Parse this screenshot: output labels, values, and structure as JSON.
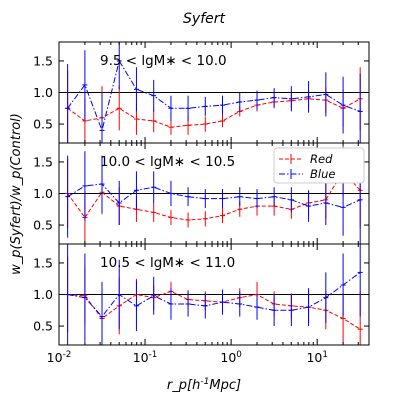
{
  "figure": {
    "title": "Syfert",
    "xlabel": "r_p[h^{-1}Mpc]",
    "ylabel": "w_p(Syfert)/w_p(Control)"
  },
  "chart_data": [
    {
      "type": "line",
      "panel_label": "9.5 < lgM* < 10.0",
      "xscale": "log",
      "xlim": [
        0.01,
        40
      ],
      "ylim": [
        0.2,
        1.8
      ],
      "yticks": [
        0.5,
        1.0,
        1.5
      ],
      "xtick_labels": [],
      "reference_line": 1.0,
      "legend": null,
      "series": [
        {
          "name": "Red",
          "color": "#ff0000",
          "style": "dashed",
          "x": [
            0.0126,
            0.02,
            0.0316,
            0.0501,
            0.0794,
            0.126,
            0.2,
            0.316,
            0.501,
            0.794,
            1.26,
            2.0,
            3.16,
            5.01,
            7.94,
            12.6,
            20.0,
            31.6
          ],
          "y": [
            0.75,
            0.55,
            0.6,
            0.75,
            0.58,
            0.55,
            0.45,
            0.48,
            0.5,
            0.55,
            0.7,
            0.8,
            0.85,
            0.87,
            0.9,
            0.88,
            0.75,
            0.9
          ],
          "err": [
            0.6,
            0.35,
            0.5,
            0.35,
            0.25,
            0.18,
            0.12,
            0.15,
            0.12,
            0.1,
            0.08,
            0.1,
            0.1,
            0.12,
            0.15,
            0.2,
            0.3,
            0.5
          ]
        },
        {
          "name": "Blue",
          "color": "#0000ff",
          "style": "dashdot",
          "x": [
            0.0126,
            0.02,
            0.0316,
            0.0501,
            0.0794,
            0.126,
            0.2,
            0.316,
            0.501,
            0.794,
            1.26,
            2.0,
            3.16,
            5.01,
            7.94,
            12.6,
            20.0,
            31.6
          ],
          "y": [
            0.75,
            1.12,
            0.4,
            1.5,
            1.05,
            0.95,
            0.75,
            0.75,
            0.78,
            0.8,
            0.85,
            0.88,
            0.92,
            0.9,
            0.93,
            0.97,
            0.8,
            0.7
          ],
          "err": [
            0.7,
            0.55,
            0.6,
            0.45,
            0.35,
            0.25,
            0.2,
            0.2,
            0.15,
            0.15,
            0.15,
            0.15,
            0.15,
            0.2,
            0.25,
            0.35,
            0.45,
            0.6
          ]
        }
      ]
    },
    {
      "type": "line",
      "panel_label": "10.0 < lgM* < 10.5",
      "xscale": "log",
      "xlim": [
        0.01,
        40
      ],
      "ylim": [
        0.2,
        1.8
      ],
      "yticks": [
        0.5,
        1.0,
        1.5
      ],
      "xtick_labels": [],
      "reference_line": 1.0,
      "legend": {
        "position": "upper-right",
        "entries": [
          "Red",
          "Blue"
        ]
      },
      "series": [
        {
          "name": "Red",
          "color": "#ff0000",
          "style": "dashed",
          "x": [
            0.0126,
            0.02,
            0.0316,
            0.0501,
            0.0794,
            0.126,
            0.2,
            0.316,
            0.501,
            0.794,
            1.26,
            2.0,
            3.16,
            5.01,
            7.94,
            12.6,
            20.0,
            31.6
          ],
          "y": [
            1.0,
            0.62,
            1.02,
            0.8,
            0.75,
            0.7,
            0.62,
            0.58,
            0.6,
            0.65,
            0.75,
            0.8,
            0.8,
            0.75,
            0.85,
            0.9,
            1.35,
            1.05
          ],
          "err": [
            0.55,
            0.4,
            0.35,
            0.3,
            0.2,
            0.15,
            0.12,
            0.12,
            0.12,
            0.12,
            0.12,
            0.15,
            0.15,
            0.15,
            0.2,
            0.3,
            0.4,
            0.6
          ]
        },
        {
          "name": "Blue",
          "color": "#0000ff",
          "style": "dashdot",
          "x": [
            0.0126,
            0.02,
            0.0316,
            0.0501,
            0.0794,
            0.126,
            0.2,
            0.316,
            0.501,
            0.794,
            1.26,
            2.0,
            3.16,
            5.01,
            7.94,
            12.6,
            20.0,
            31.6
          ],
          "y": [
            0.95,
            1.12,
            1.15,
            0.85,
            1.05,
            1.1,
            1.0,
            0.95,
            0.92,
            0.92,
            0.95,
            0.92,
            0.95,
            0.9,
            0.8,
            0.85,
            0.78,
            0.9
          ],
          "err": [
            0.65,
            0.55,
            0.45,
            0.35,
            0.3,
            0.25,
            0.2,
            0.15,
            0.15,
            0.15,
            0.15,
            0.15,
            0.15,
            0.2,
            0.25,
            0.35,
            0.45,
            0.7
          ]
        }
      ]
    },
    {
      "type": "line",
      "panel_label": "10.5 < lgM* < 11.0",
      "xscale": "log",
      "xlim": [
        0.01,
        40
      ],
      "ylim": [
        0.2,
        1.8
      ],
      "yticks": [
        0.5,
        1.0,
        1.5
      ],
      "xticks": [
        0.01,
        0.1,
        1,
        10
      ],
      "xtick_labels": [
        "10^{-2}",
        "10^{-1}",
        "10^{0}",
        "10^{1}"
      ],
      "reference_line": 1.0,
      "legend": null,
      "series": [
        {
          "name": "Red",
          "color": "#ff0000",
          "style": "dashed",
          "x": [
            0.0126,
            0.02,
            0.0316,
            0.0501,
            0.0794,
            0.126,
            0.2,
            0.316,
            0.501,
            0.794,
            1.26,
            2.0,
            3.16,
            5.01,
            7.94,
            12.6,
            20.0,
            31.6
          ],
          "y": [
            1.0,
            0.98,
            0.62,
            0.82,
            1.0,
            0.95,
            1.05,
            0.92,
            0.9,
            0.88,
            0.95,
            1.0,
            0.85,
            0.82,
            0.8,
            0.75,
            0.62,
            0.45
          ],
          "err": [
            0.6,
            0.45,
            0.35,
            0.45,
            0.25,
            0.2,
            0.15,
            0.15,
            0.15,
            0.15,
            0.15,
            0.2,
            0.2,
            0.2,
            0.25,
            0.3,
            0.4,
            0.6
          ]
        },
        {
          "name": "Blue",
          "color": "#0000ff",
          "style": "dashdot",
          "x": [
            0.0126,
            0.02,
            0.0316,
            0.0501,
            0.0794,
            0.126,
            0.2,
            0.316,
            0.501,
            0.794,
            1.26,
            2.0,
            3.16,
            5.01,
            7.94,
            12.6,
            20.0,
            31.6
          ],
          "y": [
            1.0,
            0.95,
            0.65,
            1.0,
            0.82,
            0.98,
            0.85,
            0.85,
            0.82,
            0.88,
            0.85,
            0.8,
            0.75,
            0.75,
            0.8,
            0.95,
            1.15,
            1.35
          ],
          "err": [
            0.8,
            0.7,
            0.55,
            0.55,
            0.4,
            0.3,
            0.25,
            0.2,
            0.2,
            0.2,
            0.2,
            0.2,
            0.25,
            0.25,
            0.3,
            0.4,
            0.5,
            0.7
          ]
        }
      ]
    }
  ]
}
